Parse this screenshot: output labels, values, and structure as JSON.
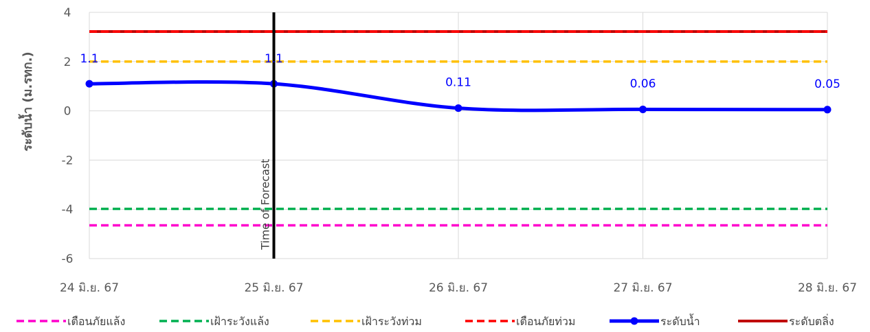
{
  "chart_data": {
    "type": "line",
    "ylabel": "ระดับน้ำ (ม.รทก.)",
    "ylim": [
      -6,
      4
    ],
    "yticks": [
      "4",
      "2",
      "0",
      "-2",
      "-4",
      "-6"
    ],
    "categories": [
      "24 มิ.ย. 67",
      "25 มิ.ย. 67",
      "26 มิ.ย. 67",
      "27 มิ.ย. 67",
      "28 มิ.ย. 67"
    ],
    "forecast_marker": {
      "category_index": 1,
      "label": "Time of Forecast"
    },
    "series": [
      {
        "name": "เตือนภัยแล้ง",
        "style": "dashed",
        "color": "#ff00cc",
        "values": [
          -4.65,
          -4.65,
          -4.65,
          -4.65,
          -4.65
        ]
      },
      {
        "name": "เฝ้าระวังแล้ง",
        "style": "dashed",
        "color": "#00b050",
        "values": [
          -3.98,
          -3.98,
          -3.98,
          -3.98,
          -3.98
        ]
      },
      {
        "name": "เฝ้าระวังท่วม",
        "style": "dashed",
        "color": "#ffc000",
        "values": [
          2.0,
          2.0,
          2.0,
          2.0,
          2.0
        ]
      },
      {
        "name": "เตือนภัยท่วม",
        "style": "dashed",
        "color": "#ff0000",
        "values": [
          3.22,
          3.22,
          3.22,
          3.22,
          3.22
        ]
      },
      {
        "name": "ระดับน้ำ",
        "style": "solid-markers",
        "color": "#0000ff",
        "values": [
          1.1,
          1.1,
          0.11,
          0.06,
          0.05
        ],
        "data_labels": [
          "1.1",
          "1.1",
          "0.11",
          "0.06",
          "0.05"
        ]
      },
      {
        "name": "ระดับตลิ่ง",
        "style": "solid",
        "color": "#c00000",
        "values": [
          3.22,
          3.22,
          3.22,
          3.22,
          3.22
        ]
      }
    ],
    "grid": true,
    "legend_position": "bottom"
  }
}
